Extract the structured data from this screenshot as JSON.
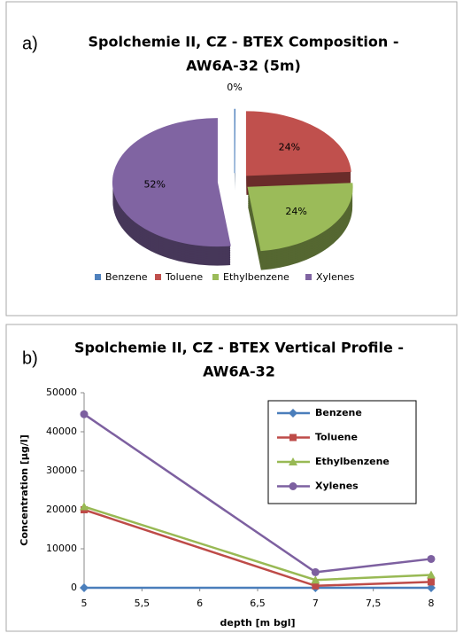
{
  "chart_data": [
    {
      "type": "pie",
      "panel_label": "a)",
      "title": [
        "Spolchemie II, CZ - BTEX Composition -",
        "AW6A-32 (5m)"
      ],
      "categories": [
        "Benzene",
        "Toluene",
        "Ethylbenzene",
        "Xylenes"
      ],
      "values": [
        0,
        24,
        24,
        52
      ],
      "value_labels": [
        "0%",
        "24%",
        "24%",
        "52%"
      ],
      "colors": [
        "#4f81bd",
        "#c0504d",
        "#9bbb59",
        "#8064a2"
      ],
      "legend": "bottom"
    },
    {
      "type": "line",
      "panel_label": "b)",
      "title": [
        "Spolchemie II, CZ - BTEX Vertical Profile -",
        "AW6A-32"
      ],
      "x_label": "depth [m bgl]",
      "y_label": "Concentration [µg/l]",
      "x": [
        5,
        7,
        8
      ],
      "xlim": [
        5,
        8
      ],
      "xticks": [
        5,
        {
          "value": 5.5,
          "label": "5,5"
        },
        6,
        {
          "value": 6.5,
          "label": "6,5"
        },
        7,
        {
          "value": 7.5,
          "label": "7,5"
        },
        8
      ],
      "ylim": [
        0,
        50000
      ],
      "yticks": [
        0,
        10000,
        20000,
        30000,
        40000,
        50000
      ],
      "legend": "top-right",
      "series": [
        {
          "name": "Benzene",
          "color": "#4a7ebb",
          "marker": "diamond",
          "values": [
            0,
            0,
            0
          ]
        },
        {
          "name": "Toluene",
          "color": "#be4b48",
          "marker": "square",
          "values": [
            20000,
            500,
            1500
          ]
        },
        {
          "name": "Ethylbenzene",
          "color": "#98b954",
          "marker": "triangle",
          "values": [
            20800,
            2000,
            3300
          ]
        },
        {
          "name": "Xylenes",
          "color": "#7d60a0",
          "marker": "circle",
          "values": [
            44500,
            4000,
            7400
          ]
        }
      ]
    }
  ]
}
